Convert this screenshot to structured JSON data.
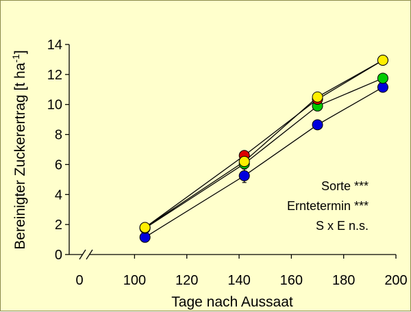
{
  "chart_data": {
    "type": "line",
    "xlabel": "Tage nach Aussaat",
    "ylabel": "Bereinigter Zuckerertrag [t ha",
    "ylabel_sup": "-1",
    "ylabel_close": "]",
    "xlim": [
      75,
      200
    ],
    "ylim": [
      0,
      14
    ],
    "axis_break_x": true,
    "x_ticks": [
      "0",
      "100",
      "120",
      "140",
      "160",
      "180",
      "200"
    ],
    "y_ticks": [
      "0",
      "2",
      "4",
      "6",
      "8",
      "10",
      "12",
      "14"
    ],
    "grid": false,
    "legend": "none",
    "x": [
      104,
      142,
      170,
      195
    ],
    "series": [
      {
        "color": "#0000dd",
        "values": [
          1.15,
          5.25,
          8.65,
          11.15
        ],
        "errors": [
          0.15,
          0.45,
          0.3,
          0.2
        ]
      },
      {
        "color": "#00cc00",
        "values": [
          1.75,
          6.05,
          9.9,
          11.75
        ],
        "errors": [
          0.15,
          0.2,
          0.2,
          0.15
        ]
      },
      {
        "color": "#dd0000",
        "values": [
          1.8,
          6.6,
          10.35,
          12.95
        ],
        "errors": [
          0.1,
          0.15,
          0.2,
          0.1
        ]
      },
      {
        "color": "#ffee00",
        "values": [
          1.8,
          6.2,
          10.5,
          12.95
        ],
        "errors": [
          0.1,
          0.15,
          0.2,
          0.1
        ]
      }
    ],
    "annotations": [
      "Sorte ***",
      "Erntetermin ***",
      "S x E n.s."
    ]
  }
}
